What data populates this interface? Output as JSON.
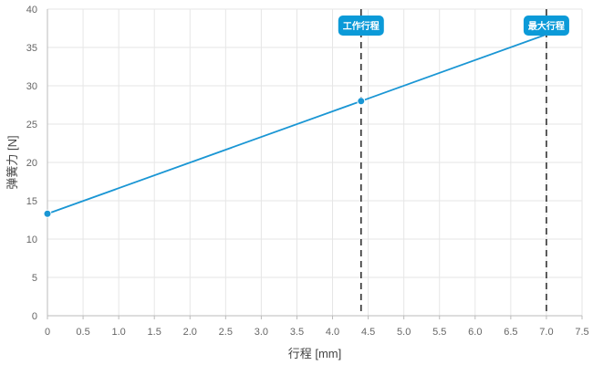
{
  "chart_data": {
    "type": "line",
    "xlabel": "行程 [mm]",
    "ylabel": "弹簧力 [N]",
    "xlim": [
      0,
      7.5
    ],
    "ylim": [
      0,
      40
    ],
    "xticks": [
      "0",
      "0.5",
      "1.0",
      "1.5",
      "2.0",
      "2.5",
      "3.0",
      "3.5",
      "4.0",
      "4.5",
      "5.0",
      "5.5",
      "6.0",
      "6.5",
      "7.0",
      "7.5"
    ],
    "yticks": [
      "0",
      "5",
      "10",
      "15",
      "20",
      "25",
      "30",
      "35",
      "40"
    ],
    "grid": true,
    "series": [
      {
        "color": "#1a96d4",
        "x": [
          0,
          4.4,
          7.0
        ],
        "y": [
          13.3,
          28.0,
          36.7
        ],
        "markers": [
          true,
          true,
          false
        ]
      }
    ],
    "annotations": [
      {
        "label": "工作行程",
        "x": 4.4
      },
      {
        "label": "最大行程",
        "x": 7.0
      }
    ]
  }
}
